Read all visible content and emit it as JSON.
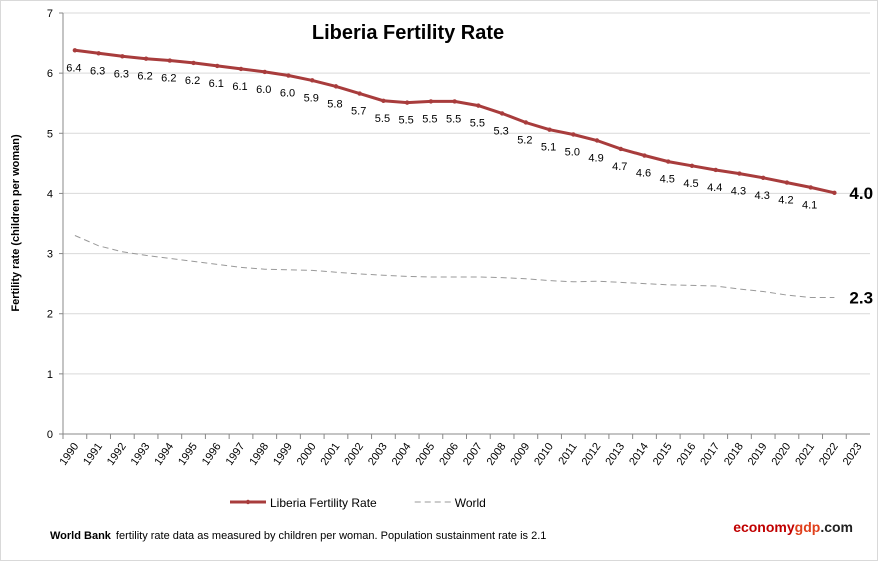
{
  "chart_data": {
    "type": "line",
    "title": "Liberia Fertility Rate",
    "y_label": "Fertility rate (children per woman)",
    "categories": [
      "1990",
      "1991",
      "1992",
      "1993",
      "1994",
      "1995",
      "1996",
      "1997",
      "1998",
      "1999",
      "2000",
      "2001",
      "2002",
      "2003",
      "2004",
      "2005",
      "2006",
      "2007",
      "2008",
      "2009",
      "2010",
      "2011",
      "2012",
      "2013",
      "2014",
      "2015",
      "2016",
      "2017",
      "2018",
      "2019",
      "2020",
      "2021",
      "2022",
      "2023"
    ],
    "series": [
      {
        "name": "Liberia Fertility Rate",
        "color": "#a83c3c",
        "style": "solid-markers",
        "values": [
          6.38,
          6.33,
          6.28,
          6.24,
          6.21,
          6.17,
          6.12,
          6.07,
          6.02,
          5.96,
          5.88,
          5.78,
          5.66,
          5.54,
          5.51,
          5.53,
          5.53,
          5.46,
          5.33,
          5.18,
          5.06,
          4.98,
          4.88,
          4.74,
          4.63,
          4.53,
          4.46,
          4.39,
          4.33,
          4.26,
          4.18,
          4.1,
          4.01,
          null
        ],
        "value_labels": [
          "6.4",
          "6.3",
          "6.3",
          "6.2",
          "6.2",
          "6.2",
          "6.1",
          "6.1",
          "6.0",
          "6.0",
          "5.9",
          "5.8",
          "5.7",
          "5.5",
          "5.5",
          "5.5",
          "5.5",
          "5.5",
          "5.3",
          "5.2",
          "5.1",
          "5.0",
          "4.9",
          "4.7",
          "4.6",
          "4.5",
          "4.5",
          "4.4",
          "4.3",
          "4.3",
          "4.2",
          "4.1",
          null,
          null
        ],
        "end_label": "4.0"
      },
      {
        "name": "World",
        "color": "#999999",
        "style": "dashed",
        "values": [
          3.3,
          3.13,
          3.03,
          2.97,
          2.92,
          2.87,
          2.82,
          2.77,
          2.74,
          2.73,
          2.72,
          2.69,
          2.66,
          2.64,
          2.62,
          2.61,
          2.61,
          2.61,
          2.6,
          2.58,
          2.55,
          2.53,
          2.54,
          2.52,
          2.5,
          2.48,
          2.47,
          2.46,
          2.41,
          2.37,
          2.31,
          2.27,
          2.27,
          null
        ],
        "end_label": "2.3"
      }
    ],
    "ylim": [
      0,
      7
    ],
    "yticks": [
      0,
      1,
      2,
      3,
      4,
      5,
      6,
      7
    ],
    "grid": true,
    "legend": "bottom",
    "footnote_bold": "World Bank",
    "footnote": "fertility rate data as measured by children per woman.  Population sustainment rate is 2.1",
    "brand_parts": [
      "economy",
      "gdp",
      ".com"
    ]
  }
}
